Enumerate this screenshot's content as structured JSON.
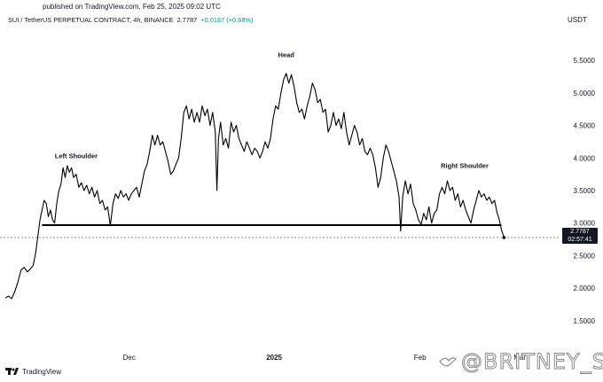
{
  "header": {
    "published": "published on TradingView.com, Feb 25, 2025 09:02 UTC",
    "symbol": "SUI / TetherUS PERPETUAL CONTRACT, 4h, BINANCE",
    "price": "2.7787",
    "change": "+0.0187 (+0.68%)",
    "currency": "USDT"
  },
  "price_tag": {
    "price": "2.7787",
    "countdown": "02:57:41"
  },
  "footer": {
    "brand": "TradingView",
    "watermark": "@BRITNEY_S"
  },
  "colors": {
    "line": "#000000",
    "change": "#089981",
    "tag_bg": "#131722"
  },
  "chart_data": {
    "type": "line",
    "y_axis_position": "right",
    "ylim": [
      1.05,
      5.95
    ],
    "y_ticks": [
      "1.5000",
      "2.0000",
      "2.5000",
      "3.0000",
      "3.5000",
      "4.0000",
      "4.5000",
      "5.0000",
      "5.5000"
    ],
    "x_ticks": [
      {
        "label": "Dec",
        "bold": false,
        "t": 0.236
      },
      {
        "label": "2025",
        "bold": true,
        "t": 0.512
      },
      {
        "label": "Feb",
        "bold": false,
        "t": 0.79
      },
      {
        "label": "Mar",
        "bold": false,
        "t": 0.98
      }
    ],
    "neckline": 2.97,
    "last_price": 2.7787,
    "series": [
      {
        "points": [
          [
            0.0,
            1.85
          ],
          [
            0.006,
            1.88
          ],
          [
            0.012,
            1.84
          ],
          [
            0.018,
            1.95
          ],
          [
            0.024,
            2.1
          ],
          [
            0.03,
            2.28
          ],
          [
            0.036,
            2.32
          ],
          [
            0.042,
            2.25
          ],
          [
            0.048,
            2.3
          ],
          [
            0.053,
            2.35
          ],
          [
            0.058,
            2.55
          ],
          [
            0.062,
            2.8
          ],
          [
            0.066,
            3.05
          ],
          [
            0.07,
            3.2
          ],
          [
            0.074,
            3.35
          ],
          [
            0.078,
            3.3
          ],
          [
            0.082,
            3.1
          ],
          [
            0.086,
            3.2
          ],
          [
            0.09,
            3.05
          ],
          [
            0.094,
            3.0
          ],
          [
            0.098,
            3.3
          ],
          [
            0.102,
            3.5
          ],
          [
            0.106,
            3.6
          ],
          [
            0.11,
            3.85
          ],
          [
            0.114,
            3.7
          ],
          [
            0.118,
            3.88
          ],
          [
            0.122,
            3.78
          ],
          [
            0.126,
            3.85
          ],
          [
            0.13,
            3.7
          ],
          [
            0.135,
            3.75
          ],
          [
            0.14,
            3.55
          ],
          [
            0.145,
            3.62
          ],
          [
            0.15,
            3.5
          ],
          [
            0.155,
            3.58
          ],
          [
            0.16,
            3.45
          ],
          [
            0.165,
            3.55
          ],
          [
            0.17,
            3.4
          ],
          [
            0.175,
            3.5
          ],
          [
            0.18,
            3.3
          ],
          [
            0.185,
            3.35
          ],
          [
            0.19,
            3.2
          ],
          [
            0.195,
            3.25
          ],
          [
            0.2,
            2.96
          ],
          [
            0.205,
            3.3
          ],
          [
            0.21,
            3.45
          ],
          [
            0.215,
            3.38
          ],
          [
            0.22,
            3.5
          ],
          [
            0.225,
            3.4
          ],
          [
            0.23,
            3.45
          ],
          [
            0.235,
            3.35
          ],
          [
            0.24,
            3.45
          ],
          [
            0.245,
            3.5
          ],
          [
            0.25,
            3.55
          ],
          [
            0.255,
            3.4
          ],
          [
            0.26,
            3.6
          ],
          [
            0.265,
            3.8
          ],
          [
            0.27,
            3.9
          ],
          [
            0.275,
            4.1
          ],
          [
            0.28,
            4.35
          ],
          [
            0.285,
            4.2
          ],
          [
            0.29,
            4.35
          ],
          [
            0.295,
            4.2
          ],
          [
            0.3,
            4.25
          ],
          [
            0.305,
            4.1
          ],
          [
            0.31,
            3.95
          ],
          [
            0.315,
            3.75
          ],
          [
            0.32,
            3.8
          ],
          [
            0.325,
            3.9
          ],
          [
            0.33,
            4.0
          ],
          [
            0.335,
            4.3
          ],
          [
            0.34,
            4.7
          ],
          [
            0.345,
            4.8
          ],
          [
            0.35,
            4.6
          ],
          [
            0.355,
            4.75
          ],
          [
            0.36,
            4.55
          ],
          [
            0.365,
            4.7
          ],
          [
            0.37,
            4.55
          ],
          [
            0.375,
            4.8
          ],
          [
            0.38,
            4.65
          ],
          [
            0.385,
            4.75
          ],
          [
            0.39,
            4.5
          ],
          [
            0.395,
            4.7
          ],
          [
            0.4,
            4.4
          ],
          [
            0.403,
            3.5
          ],
          [
            0.406,
            4.3
          ],
          [
            0.41,
            4.55
          ],
          [
            0.415,
            4.2
          ],
          [
            0.42,
            4.3
          ],
          [
            0.425,
            4.15
          ],
          [
            0.43,
            4.55
          ],
          [
            0.435,
            4.4
          ],
          [
            0.44,
            4.5
          ],
          [
            0.445,
            4.3
          ],
          [
            0.45,
            4.2
          ],
          [
            0.455,
            4.1
          ],
          [
            0.46,
            4.25
          ],
          [
            0.465,
            4.15
          ],
          [
            0.47,
            4.05
          ],
          [
            0.475,
            4.15
          ],
          [
            0.48,
            4.1
          ],
          [
            0.485,
            4.0
          ],
          [
            0.49,
            4.1
          ],
          [
            0.495,
            4.25
          ],
          [
            0.5,
            4.15
          ],
          [
            0.505,
            4.3
          ],
          [
            0.51,
            4.6
          ],
          [
            0.515,
            4.8
          ],
          [
            0.52,
            4.75
          ],
          [
            0.525,
            5.0
          ],
          [
            0.53,
            5.2
          ],
          [
            0.535,
            5.3
          ],
          [
            0.54,
            5.15
          ],
          [
            0.545,
            5.28
          ],
          [
            0.55,
            5.1
          ],
          [
            0.555,
            4.85
          ],
          [
            0.56,
            4.7
          ],
          [
            0.565,
            4.75
          ],
          [
            0.57,
            4.6
          ],
          [
            0.575,
            4.8
          ],
          [
            0.58,
            4.95
          ],
          [
            0.585,
            5.15
          ],
          [
            0.59,
            5.05
          ],
          [
            0.595,
            4.85
          ],
          [
            0.6,
            4.9
          ],
          [
            0.605,
            4.7
          ],
          [
            0.61,
            4.75
          ],
          [
            0.615,
            4.4
          ],
          [
            0.62,
            4.5
          ],
          [
            0.625,
            4.7
          ],
          [
            0.63,
            4.5
          ],
          [
            0.635,
            4.6
          ],
          [
            0.64,
            4.45
          ],
          [
            0.645,
            4.7
          ],
          [
            0.65,
            4.4
          ],
          [
            0.655,
            4.2
          ],
          [
            0.66,
            4.35
          ],
          [
            0.665,
            4.5
          ],
          [
            0.67,
            4.4
          ],
          [
            0.675,
            4.2
          ],
          [
            0.68,
            4.3
          ],
          [
            0.685,
            4.1
          ],
          [
            0.69,
            4.05
          ],
          [
            0.695,
            4.15
          ],
          [
            0.7,
            4.05
          ],
          [
            0.705,
            3.85
          ],
          [
            0.71,
            3.55
          ],
          [
            0.715,
            3.7
          ],
          [
            0.72,
            4.0
          ],
          [
            0.725,
            4.2
          ],
          [
            0.73,
            4.1
          ],
          [
            0.735,
            3.95
          ],
          [
            0.74,
            3.8
          ],
          [
            0.745,
            3.65
          ],
          [
            0.75,
            3.4
          ],
          [
            0.753,
            2.88
          ],
          [
            0.757,
            3.4
          ],
          [
            0.762,
            3.65
          ],
          [
            0.767,
            3.45
          ],
          [
            0.772,
            3.6
          ],
          [
            0.777,
            3.3
          ],
          [
            0.782,
            3.2
          ],
          [
            0.787,
            3.05
          ],
          [
            0.792,
            2.98
          ],
          [
            0.797,
            3.15
          ],
          [
            0.802,
            3.05
          ],
          [
            0.807,
            3.25
          ],
          [
            0.812,
            3.0
          ],
          [
            0.817,
            3.15
          ],
          [
            0.822,
            3.2
          ],
          [
            0.827,
            3.45
          ],
          [
            0.832,
            3.55
          ],
          [
            0.837,
            3.45
          ],
          [
            0.842,
            3.65
          ],
          [
            0.847,
            3.5
          ],
          [
            0.852,
            3.55
          ],
          [
            0.857,
            3.35
          ],
          [
            0.862,
            3.45
          ],
          [
            0.867,
            3.25
          ],
          [
            0.872,
            3.35
          ],
          [
            0.877,
            3.2
          ],
          [
            0.882,
            3.1
          ],
          [
            0.887,
            3.0
          ],
          [
            0.892,
            3.2
          ],
          [
            0.897,
            3.35
          ],
          [
            0.902,
            3.5
          ],
          [
            0.907,
            3.4
          ],
          [
            0.912,
            3.45
          ],
          [
            0.917,
            3.35
          ],
          [
            0.922,
            3.4
          ],
          [
            0.927,
            3.3
          ],
          [
            0.932,
            3.35
          ],
          [
            0.937,
            3.15
          ],
          [
            0.941,
            3.05
          ],
          [
            0.945,
            2.9
          ],
          [
            0.95,
            2.7787
          ]
        ]
      }
    ],
    "annotations": [
      {
        "text": "Left Shoulder",
        "t": 0.135,
        "v": 4.0
      },
      {
        "text": "Head",
        "t": 0.535,
        "v": 5.55
      },
      {
        "text": "Right Shoulder",
        "t": 0.875,
        "v": 3.85
      }
    ]
  }
}
